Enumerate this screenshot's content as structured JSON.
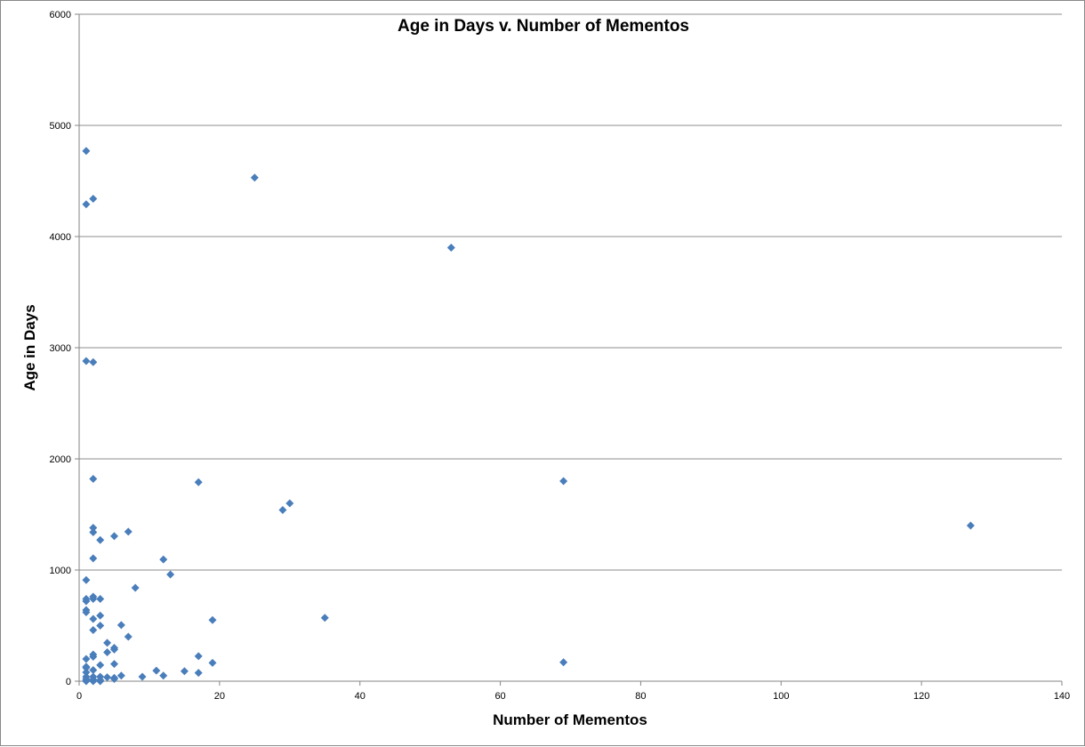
{
  "chart_data": {
    "type": "scatter",
    "title": "Age in Days v. Number of Mementos",
    "xlabel": "Number of Mementos",
    "ylabel": "Age in Days",
    "xlim": [
      0,
      140
    ],
    "ylim": [
      0,
      6000
    ],
    "xticks": [
      0,
      20,
      40,
      60,
      80,
      100,
      120,
      140
    ],
    "yticks": [
      0,
      1000,
      2000,
      3000,
      4000,
      5000,
      6000
    ],
    "grid": "horizontal",
    "legend": "none",
    "marker": "diamond",
    "marker_color": "#4a7ebb",
    "points": [
      [
        1,
        4770
      ],
      [
        1,
        4290
      ],
      [
        2,
        4340
      ],
      [
        25,
        4530
      ],
      [
        53,
        3900
      ],
      [
        1,
        2880
      ],
      [
        2,
        2870
      ],
      [
        2,
        1820
      ],
      [
        17,
        1790
      ],
      [
        69,
        1800
      ],
      [
        30,
        1600
      ],
      [
        29,
        1540
      ],
      [
        127,
        1400
      ],
      [
        2,
        1380
      ],
      [
        2,
        1340
      ],
      [
        7,
        1345
      ],
      [
        5,
        1305
      ],
      [
        3,
        1270
      ],
      [
        2,
        1105
      ],
      [
        12,
        1095
      ],
      [
        13,
        960
      ],
      [
        1,
        910
      ],
      [
        8,
        840
      ],
      [
        2,
        760
      ],
      [
        1,
        740
      ],
      [
        2,
        740
      ],
      [
        3,
        740
      ],
      [
        1,
        720
      ],
      [
        1,
        640
      ],
      [
        1,
        620
      ],
      [
        3,
        590
      ],
      [
        2,
        560
      ],
      [
        19,
        550
      ],
      [
        35,
        570
      ],
      [
        6,
        505
      ],
      [
        3,
        500
      ],
      [
        2,
        460
      ],
      [
        7,
        400
      ],
      [
        4,
        345
      ],
      [
        5,
        300
      ],
      [
        5,
        285
      ],
      [
        4,
        260
      ],
      [
        2,
        240
      ],
      [
        2,
        220
      ],
      [
        17,
        225
      ],
      [
        1,
        200
      ],
      [
        3,
        145
      ],
      [
        1,
        130
      ],
      [
        1,
        120
      ],
      [
        5,
        155
      ],
      [
        19,
        165
      ],
      [
        69,
        170
      ],
      [
        2,
        100
      ],
      [
        11,
        95
      ],
      [
        15,
        90
      ],
      [
        1,
        80
      ],
      [
        17,
        75
      ],
      [
        6,
        50
      ],
      [
        12,
        50
      ],
      [
        1,
        40
      ],
      [
        2,
        40
      ],
      [
        3,
        40
      ],
      [
        4,
        35
      ],
      [
        5,
        30
      ],
      [
        9,
        40
      ],
      [
        1,
        20
      ],
      [
        2,
        15
      ],
      [
        3,
        10
      ],
      [
        1,
        5
      ],
      [
        2,
        0
      ],
      [
        3,
        0
      ],
      [
        1,
        0
      ],
      [
        5,
        20
      ]
    ]
  }
}
